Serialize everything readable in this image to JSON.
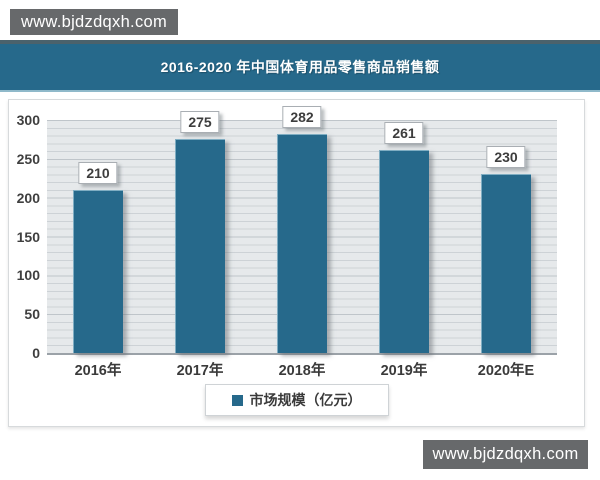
{
  "watermarks": {
    "top": "www.bjdzdqxh.com",
    "bottom": "www.bjdzdqxh.com"
  },
  "header": {
    "title": "2016-2020 年中国体育用品零售商品销售额"
  },
  "chart_data": {
    "type": "bar",
    "title": "2016-2020 年中国体育用品零售商品销售额",
    "categories": [
      "2016年",
      "2017年",
      "2018年",
      "2019年",
      "2020年E"
    ],
    "values": [
      210,
      275,
      282,
      261,
      230
    ],
    "series_name": "市场规模（亿元）",
    "xlabel": "",
    "ylabel": "",
    "ylim": [
      0,
      300
    ],
    "yticks_desc": [
      300,
      250,
      200,
      150,
      100,
      50,
      0
    ],
    "grid": "horizontal minor gridlines every 10 units, major every 50",
    "legend_position": "bottom-center",
    "bar_color": "#26698b",
    "plot_background": "#e6e9eb"
  },
  "colors": {
    "accent_teal": "#26698b",
    "header_rule": "#4b626c",
    "watermark_gray": "#67696b",
    "gridline": "#cdd2d6",
    "panel_border": "#d7dadc"
  }
}
